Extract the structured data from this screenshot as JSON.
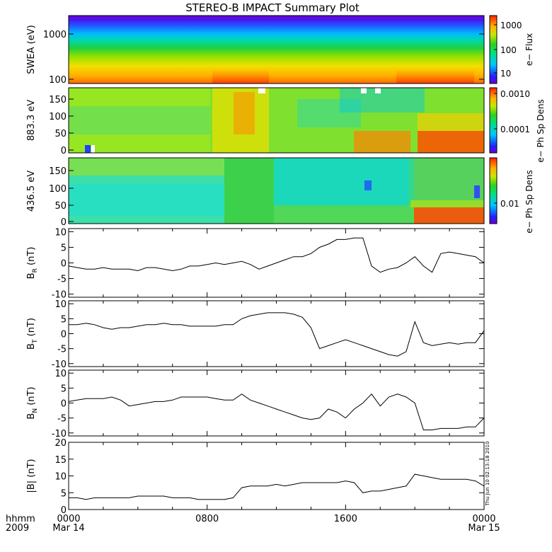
{
  "figure": {
    "title": "STEREO-B IMPACT Summary Plot",
    "timestamp_side": "Thu Jun 10 02:13:18 2010",
    "time_axis": {
      "left_labels": [
        "hhmm",
        "2009"
      ],
      "ticks": [
        {
          "hour": 0,
          "line1": "0000",
          "line2": "Mar 14"
        },
        {
          "hour": 8,
          "line1": "0800",
          "line2": ""
        },
        {
          "hour": 16,
          "line1": "1600",
          "line2": ""
        },
        {
          "hour": 24,
          "line1": "0000",
          "line2": "Mar 15"
        }
      ]
    }
  },
  "chart_data": [
    {
      "type": "heatmap",
      "id": "swea",
      "ylabel": "SWEA (eV)",
      "y_scale": "log",
      "ylim": [
        100,
        2000
      ],
      "y_ticks": [
        "1000",
        "100"
      ],
      "colorbar": {
        "label": "e− Flux",
        "scale": "log",
        "ticks": [
          "1000",
          "100",
          "10"
        ]
      }
    },
    {
      "type": "heatmap",
      "id": "pad883",
      "ylabel": "883.3 eV",
      "ylim": [
        0,
        180
      ],
      "y_ticks": [
        "150",
        "100",
        "50",
        "0"
      ],
      "colorbar": {
        "label": "e− Ph Sp Dens",
        "scale": "log",
        "ticks": [
          "0.0010",
          "0.0001"
        ]
      }
    },
    {
      "type": "heatmap",
      "id": "pad436",
      "ylabel": "436.5 eV",
      "ylim": [
        0,
        180
      ],
      "y_ticks": [
        "150",
        "100",
        "50",
        "0"
      ],
      "colorbar": {
        "label": "e− Ph Sp Dens",
        "scale": "log",
        "ticks": [
          "0.01"
        ]
      }
    },
    {
      "type": "line",
      "id": "br",
      "ylabel_main": "B",
      "ylabel_sub": "R",
      "ylabel_unit": " (nT)",
      "ylim": [
        -11,
        11
      ],
      "y_ticks": [
        10,
        5,
        0,
        -5,
        -10
      ],
      "x": [
        0,
        0.5,
        1,
        1.5,
        2,
        2.5,
        3,
        3.5,
        4,
        4.5,
        5,
        5.5,
        6,
        6.5,
        7,
        7.5,
        8,
        8.5,
        9,
        9.5,
        10,
        10.5,
        11,
        11.5,
        12,
        12.5,
        13,
        13.5,
        14,
        14.5,
        15,
        15.5,
        16,
        16.5,
        17,
        17.5,
        18,
        18.5,
        19,
        19.5,
        20,
        20.5,
        21,
        21.5,
        22,
        22.5,
        23,
        23.5,
        24
      ],
      "y": [
        -1,
        -1.5,
        -2,
        -2,
        -1.5,
        -2,
        -2,
        -2,
        -2.5,
        -1.5,
        -1.5,
        -2,
        -2.5,
        -2,
        -1,
        -1,
        -0.5,
        0,
        -0.5,
        0,
        0.5,
        -0.5,
        -2,
        -1,
        0,
        1,
        2,
        2,
        3,
        5,
        6,
        7.5,
        7.5,
        8,
        8,
        -1,
        -3,
        -2,
        -1.5,
        0,
        2,
        -1,
        -3,
        3,
        3.5,
        3,
        2.5,
        2,
        0
      ]
    },
    {
      "type": "line",
      "id": "bt",
      "ylabel_main": "B",
      "ylabel_sub": "T",
      "ylabel_unit": " (nT)",
      "ylim": [
        -11,
        11
      ],
      "y_ticks": [
        10,
        5,
        0,
        -5,
        -10
      ],
      "x": [
        0,
        0.5,
        1,
        1.5,
        2,
        2.5,
        3,
        3.5,
        4,
        4.5,
        5,
        5.5,
        6,
        6.5,
        7,
        7.5,
        8,
        8.5,
        9,
        9.5,
        10,
        10.5,
        11,
        11.5,
        12,
        12.5,
        13,
        13.5,
        14,
        14.5,
        15,
        15.5,
        16,
        16.5,
        17,
        17.5,
        18,
        18.5,
        19,
        19.5,
        20,
        20.5,
        21,
        21.5,
        22,
        22.5,
        23,
        23.5,
        24
      ],
      "y": [
        3,
        3,
        3.5,
        3,
        2,
        1.5,
        2,
        2,
        2.5,
        3,
        3,
        3.5,
        3,
        3,
        2.5,
        2.5,
        2.5,
        2.5,
        3,
        3,
        5,
        6,
        6.5,
        7,
        7,
        7,
        6.5,
        5.5,
        2,
        -5,
        -4,
        -3,
        -2,
        -3,
        -4,
        -5,
        -6,
        -7,
        -7.5,
        -6,
        4,
        -3,
        -4,
        -3.5,
        -3,
        -3.5,
        -3,
        -3,
        1
      ]
    },
    {
      "type": "line",
      "id": "bn",
      "ylabel_main": "B",
      "ylabel_sub": "N",
      "ylabel_unit": " (nT)",
      "ylim": [
        -11,
        11
      ],
      "y_ticks": [
        10,
        5,
        0,
        -5,
        -10
      ],
      "x": [
        0,
        0.5,
        1,
        1.5,
        2,
        2.5,
        3,
        3.5,
        4,
        4.5,
        5,
        5.5,
        6,
        6.5,
        7,
        7.5,
        8,
        8.5,
        9,
        9.5,
        10,
        10.5,
        11,
        11.5,
        12,
        12.5,
        13,
        13.5,
        14,
        14.5,
        15,
        15.5,
        16,
        16.5,
        17,
        17.5,
        18,
        18.5,
        19,
        19.5,
        20,
        20.5,
        21,
        21.5,
        22,
        22.5,
        23,
        23.5,
        24
      ],
      "y": [
        0.5,
        1,
        1.5,
        1.5,
        1.5,
        2,
        1,
        -1,
        -0.5,
        0,
        0.5,
        0.5,
        1,
        2,
        2,
        2,
        2,
        1.5,
        1,
        1,
        3,
        1,
        0,
        -1,
        -2,
        -3,
        -4,
        -5,
        -5.5,
        -5,
        -2,
        -3,
        -5,
        -2,
        0,
        3,
        -1,
        2,
        3,
        2,
        0,
        -9,
        -9,
        -8.5,
        -8.5,
        -8.5,
        -8,
        -8,
        -5
      ]
    },
    {
      "type": "line",
      "id": "bmag",
      "ylabel_unit": "|B| (nT)",
      "ylim": [
        0,
        20
      ],
      "y_ticks": [
        20,
        15,
        10,
        5,
        0
      ],
      "x": [
        0,
        0.5,
        1,
        1.5,
        2,
        2.5,
        3,
        3.5,
        4,
        4.5,
        5,
        5.5,
        6,
        6.5,
        7,
        7.5,
        8,
        8.5,
        9,
        9.5,
        10,
        10.5,
        11,
        11.5,
        12,
        12.5,
        13,
        13.5,
        14,
        14.5,
        15,
        15.5,
        16,
        16.5,
        17,
        17.5,
        18,
        18.5,
        19,
        19.5,
        20,
        20.5,
        21,
        21.5,
        22,
        22.5,
        23,
        23.5,
        24
      ],
      "y": [
        3.5,
        3.5,
        3,
        3.5,
        3.5,
        3.5,
        3.5,
        3.5,
        4,
        4,
        4,
        4,
        3.5,
        3.5,
        3.5,
        3,
        3,
        3,
        3,
        3.5,
        6.5,
        7,
        7,
        7,
        7.5,
        7,
        7.5,
        8,
        8,
        8,
        8,
        8,
        8.5,
        8,
        5,
        5.5,
        5.5,
        6,
        6.5,
        7,
        10.5,
        10,
        9.5,
        9,
        9,
        9,
        9,
        8.5,
        7
      ]
    }
  ]
}
